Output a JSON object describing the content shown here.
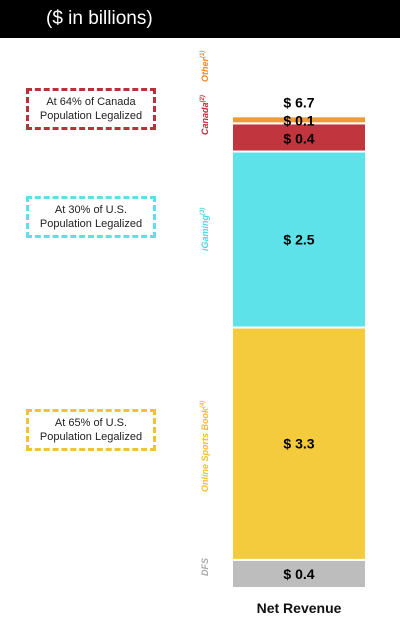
{
  "header": {
    "title": "($ in billions)"
  },
  "notes": [
    {
      "text": "At 64% of Canada Population Legalized",
      "color": "#b5323a"
    },
    {
      "text": "At 30% of U.S. Population Legalized",
      "color": "#5ee0e6"
    },
    {
      "text": "At 65% of U.S. Population Legalized",
      "color": "#f2c13a"
    }
  ],
  "chart_data": {
    "type": "bar",
    "stacked": true,
    "categories": [
      "Net Revenue"
    ],
    "xlabel": "Net Revenue",
    "total_label": "$ 6.7",
    "total": 6.7,
    "series": [
      {
        "name": "DFS",
        "value": 0.4,
        "label": "$ 0.4",
        "color": "#bdbdbd",
        "label_color": "#a9a9a9"
      },
      {
        "name": "Online Sports Book",
        "name_sup": "(4)",
        "value": 3.3,
        "label": "$ 3.3",
        "color": "#f5cb3e",
        "label_color": "#f0bf2a"
      },
      {
        "name": "iGaming",
        "name_sup": "(3)",
        "value": 2.5,
        "label": "$ 2.5",
        "color": "#5ee2ea",
        "label_color": "#4fd6e0"
      },
      {
        "name": "Canada",
        "name_sup": "(2)",
        "value": 0.4,
        "label": "$ 0.4",
        "color": "#c1353f",
        "label_color": "#b5323a"
      },
      {
        "name": "Other",
        "name_sup": "(1)",
        "value": 0.1,
        "label": "$ 0.1",
        "color": "#ef9a3a",
        "label_color": "#ee8a2a"
      }
    ]
  }
}
